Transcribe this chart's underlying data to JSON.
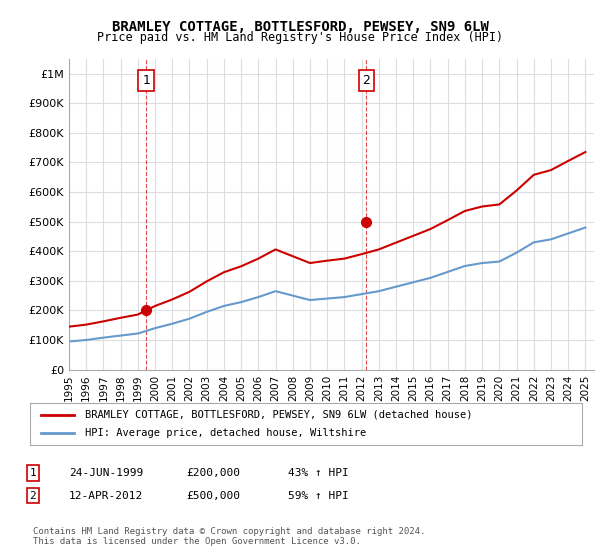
{
  "title": "BRAMLEY COTTAGE, BOTTLESFORD, PEWSEY, SN9 6LW",
  "subtitle": "Price paid vs. HM Land Registry's House Price Index (HPI)",
  "x_start": 1995.0,
  "x_end": 2025.5,
  "y_min": 0,
  "y_max": 1050000,
  "y_ticks": [
    0,
    100000,
    200000,
    300000,
    400000,
    500000,
    600000,
    700000,
    800000,
    900000,
    1000000
  ],
  "y_tick_labels": [
    "£0",
    "£100K",
    "£200K",
    "£300K",
    "£400K",
    "£500K",
    "£600K",
    "£700K",
    "£800K",
    "£900K",
    "£1M"
  ],
  "x_ticks": [
    1995,
    1996,
    1997,
    1998,
    1999,
    2000,
    2001,
    2002,
    2003,
    2004,
    2005,
    2006,
    2007,
    2008,
    2009,
    2010,
    2011,
    2012,
    2013,
    2014,
    2015,
    2016,
    2017,
    2018,
    2019,
    2020,
    2021,
    2022,
    2023,
    2024,
    2025
  ],
  "sale1_x": 1999.48,
  "sale1_y": 200000,
  "sale2_x": 2012.28,
  "sale2_y": 500000,
  "red_line_color": "#cc0000",
  "blue_line_color": "#6699cc",
  "marker_color": "#cc0000",
  "dashed_line_color": "#cc0000",
  "legend_label_red": "BRAMLEY COTTAGE, BOTTLESFORD, PEWSEY, SN9 6LW (detached house)",
  "legend_label_blue": "HPI: Average price, detached house, Wiltshire",
  "annotation1_label": "1",
  "annotation2_label": "2",
  "table_row1": [
    "1",
    "24-JUN-1999",
    "£200,000",
    "43% ↑ HPI"
  ],
  "table_row2": [
    "2",
    "12-APR-2012",
    "£500,000",
    "59% ↑ HPI"
  ],
  "footer": "Contains HM Land Registry data © Crown copyright and database right 2024.\nThis data is licensed under the Open Government Licence v3.0.",
  "background_color": "#ffffff",
  "grid_color": "#dddddd"
}
